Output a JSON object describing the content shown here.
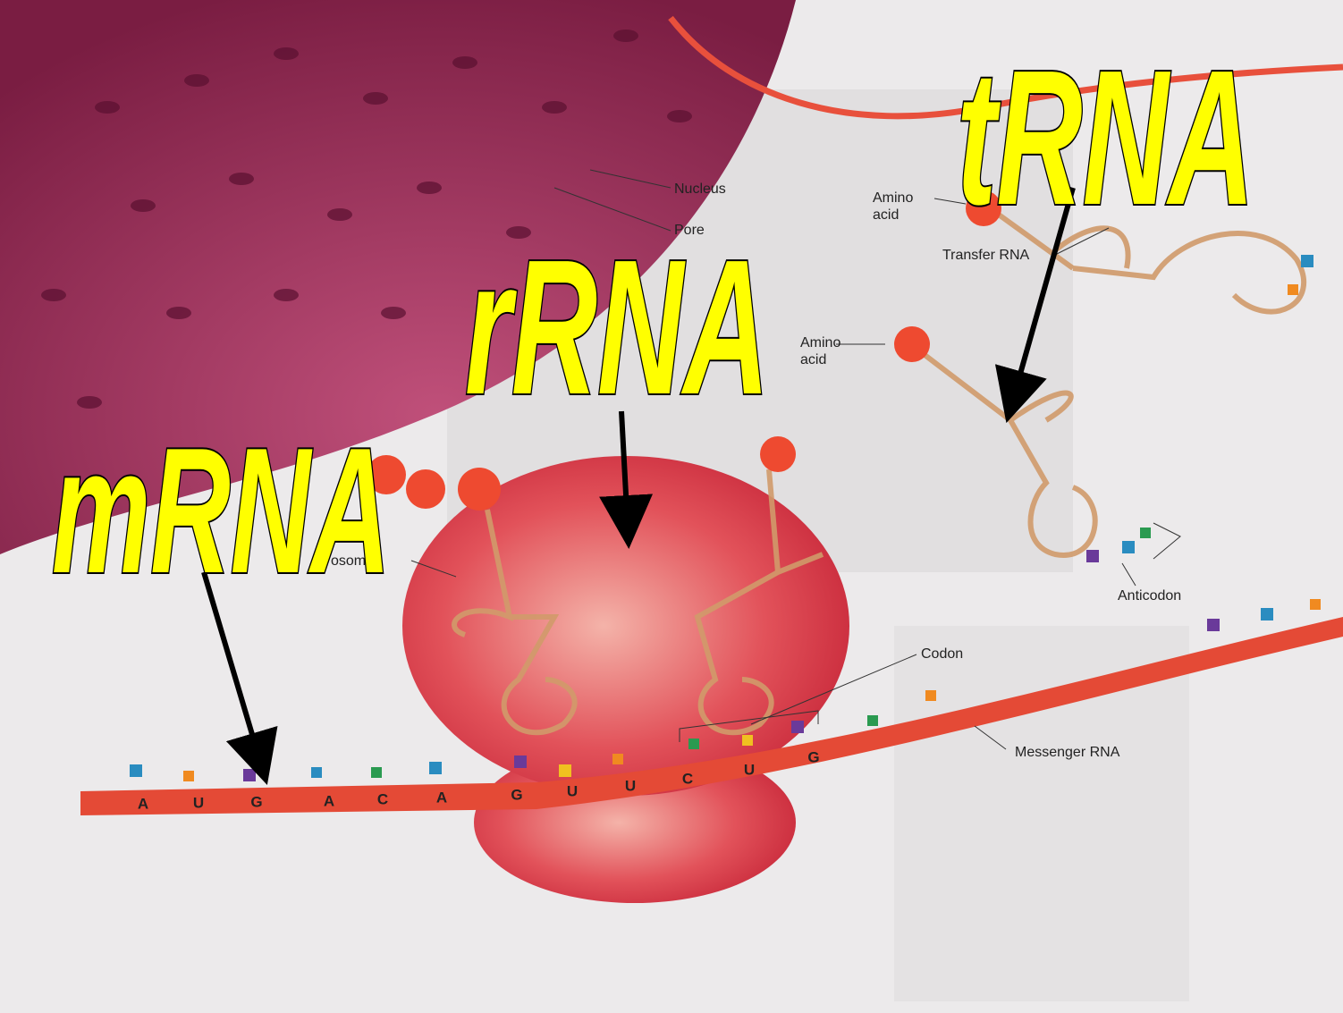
{
  "labels": {
    "trna": "tRNA",
    "rrna": "rRNA",
    "mrna": "mRNA"
  },
  "callouts": {
    "nucleus": "Nucleus",
    "pore": "Pore",
    "amino_acid_1": "Amino acid",
    "transfer_rna": "Transfer RNA",
    "amino_acid_2": "Amino acid",
    "ribosome": "osome",
    "codon": "Codon",
    "anticodon": "Anticodon",
    "messenger_rna": "Messenger RNA"
  },
  "bases": [
    "A",
    "U",
    "G",
    "A",
    "C",
    "A",
    "G",
    "U",
    "U",
    "C",
    "U",
    "G"
  ]
}
